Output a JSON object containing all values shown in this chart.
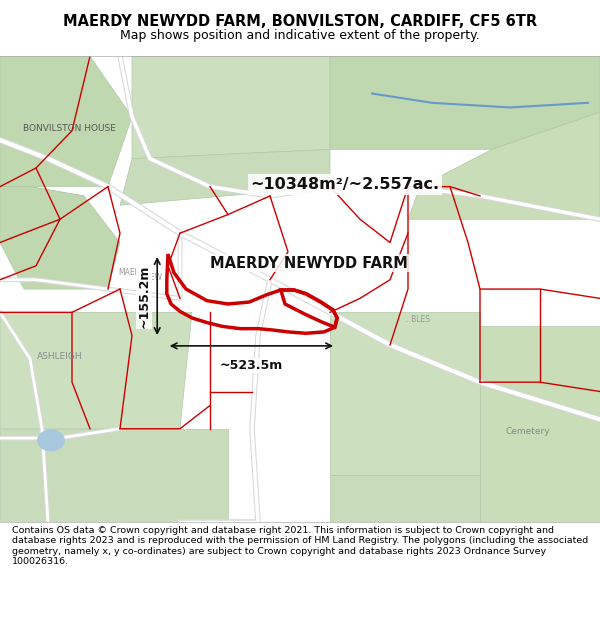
{
  "title_line1": "MAERDY NEWYDD FARM, BONVILSTON, CARDIFF, CF5 6TR",
  "title_line2": "Map shows position and indicative extent of the property.",
  "footer_text": "Contains OS data © Crown copyright and database right 2021. This information is subject to Crown copyright and database rights 2023 and is reproduced with the permission of HM Land Registry. The polygons (including the associated geometry, namely x, y co-ordinates) are subject to Crown copyright and database rights 2023 Ordnance Survey 100026316.",
  "area_label": "~10348m²/~2.557ac.",
  "property_label": "MAERDY NEWYDD FARM",
  "dim_horizontal": "~523.5m",
  "dim_vertical": "~155.2m",
  "map_bg_color": "#f0ede8",
  "property_edge_color": "#cc0000",
  "title_bg": "#ffffff",
  "fig_width": 6.0,
  "fig_height": 6.25,
  "dpi": 100
}
